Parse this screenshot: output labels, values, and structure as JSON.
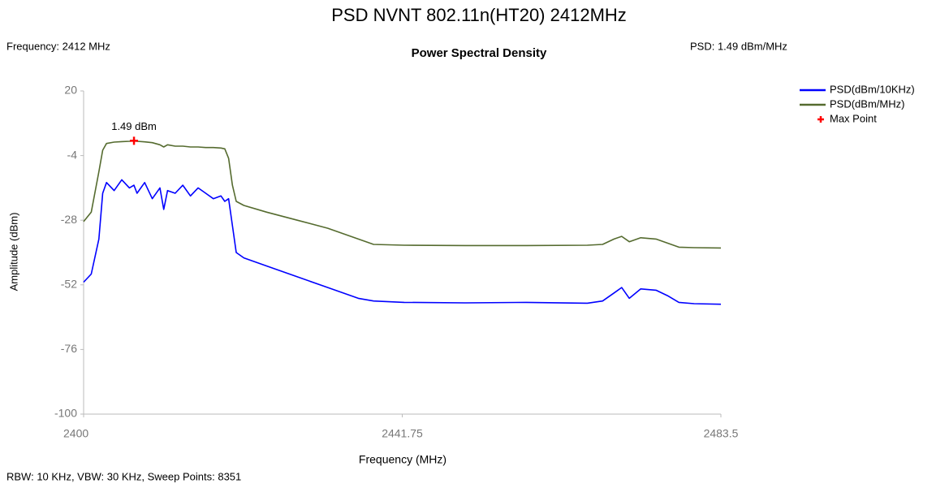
{
  "page_title": "PSD NVNT 802.11n(HT20) 2412MHz",
  "info_left": "Frequency: 2412 MHz",
  "info_right": "PSD: 1.49 dBm/MHz",
  "footer": "RBW: 10 KHz,  VBW: 30 KHz,  Sweep Points: 8351",
  "chart_data": {
    "type": "line",
    "title": "Power Spectral Density",
    "x_label": "Frequency (MHz)",
    "y_label": "Amplitude (dBm)",
    "xlim": [
      2400,
      2483.5
    ],
    "xticks": [
      2400,
      2441.75,
      2483.5
    ],
    "ylim": [
      -100,
      20
    ],
    "yticks": [
      20,
      -4,
      -28,
      -52,
      -76,
      -100
    ],
    "grid": false,
    "legend": "right",
    "x": [
      2400,
      2401,
      2402,
      2402.5,
      2403,
      2404,
      2405,
      2406,
      2406.6,
      2407,
      2408,
      2409,
      2410,
      2410.5,
      2411,
      2412,
      2413,
      2414,
      2415,
      2416,
      2417,
      2418,
      2418.5,
      2419,
      2419.5,
      2420,
      2421,
      2424,
      2428,
      2432,
      2436,
      2438,
      2442,
      2450,
      2458,
      2466,
      2468,
      2469.5,
      2470.5,
      2471.5,
      2473,
      2475,
      2476.5,
      2478,
      2480,
      2483.5
    ],
    "series": [
      {
        "name": "PSD(dBm/10KHz)",
        "color": "#0000ff",
        "values": [
          -51,
          -48,
          -35,
          -18,
          -14,
          -17,
          -13,
          -16,
          -15,
          -18,
          -14,
          -20,
          -16,
          -24,
          -17,
          -18,
          -15,
          -19,
          -16,
          -18,
          -20,
          -19,
          -21,
          -20,
          -30,
          -40,
          -42,
          -45,
          -49,
          -53,
          -57,
          -58,
          -58.5,
          -58.7,
          -58.5,
          -58.8,
          -58,
          -55,
          -53,
          -57,
          -53.5,
          -54,
          -56,
          -58.5,
          -59,
          -59.2
        ]
      },
      {
        "name": "PSD(dBm/MHz)",
        "color": "#556b2f",
        "values": [
          -28.5,
          -25,
          -10,
          -2,
          0.5,
          1,
          1.2,
          1.3,
          1.49,
          1.3,
          1.1,
          0.8,
          0,
          -0.8,
          0,
          -0.5,
          -0.5,
          -0.8,
          -0.8,
          -1,
          -1,
          -1.2,
          -1.5,
          -5,
          -15,
          -21,
          -22.5,
          -25,
          -28,
          -31,
          -35,
          -37,
          -37.3,
          -37.4,
          -37.4,
          -37.3,
          -37,
          -35,
          -34,
          -36,
          -34.5,
          -35,
          -36.5,
          -38,
          -38.2,
          -38.3
        ]
      },
      {
        "name": "Max Point",
        "color": "#ff0000",
        "x": [
          2406.6
        ],
        "values": [
          1.49
        ],
        "value_labels": [
          "1.49 dBm"
        ]
      }
    ]
  }
}
